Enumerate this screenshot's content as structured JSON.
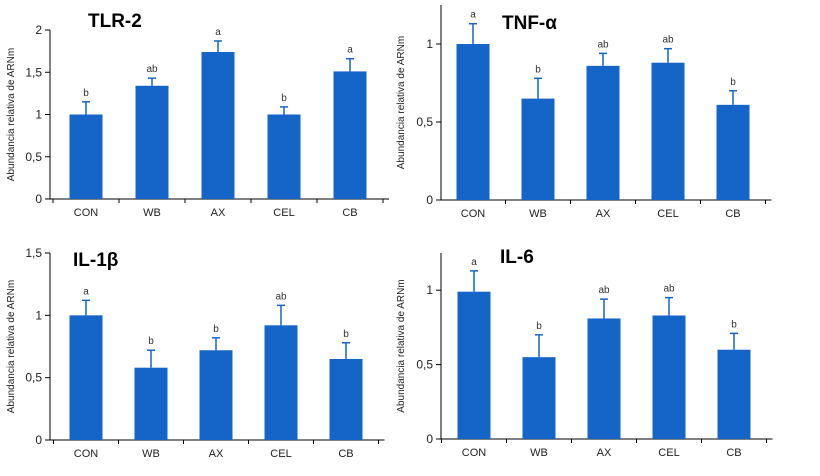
{
  "chart_data": [
    {
      "type": "bar",
      "title": "TLR-2",
      "ylabel": "Abundancia relativa de ARNm",
      "categories": [
        "CON",
        "WB",
        "AX",
        "CEL",
        "CB"
      ],
      "values": [
        1.0,
        1.34,
        1.74,
        1.0,
        1.51
      ],
      "errors": [
        0.15,
        0.09,
        0.13,
        0.09,
        0.15
      ],
      "significance": [
        "b",
        "ab",
        "a",
        "b",
        "a"
      ],
      "ylim": [
        0,
        2
      ],
      "yticks": [
        0,
        0.5,
        1,
        1.5,
        2
      ],
      "ytick_labels": [
        "0",
        "0,5",
        "1",
        "1,5",
        "2"
      ]
    },
    {
      "type": "bar",
      "title": "TNF-α",
      "ylabel": "Abundancia relativa de ARNm",
      "categories": [
        "CON",
        "WB",
        "AX",
        "CEL",
        "CB"
      ],
      "values": [
        1.0,
        0.65,
        0.86,
        0.88,
        0.61
      ],
      "errors": [
        0.13,
        0.13,
        0.08,
        0.09,
        0.09
      ],
      "significance": [
        "a",
        "b",
        "ab",
        "ab",
        "b"
      ],
      "ylim": [
        0,
        1.25
      ],
      "yticks": [
        0,
        0.5,
        1
      ],
      "ytick_labels": [
        "0",
        "0,5",
        "1"
      ]
    },
    {
      "type": "bar",
      "title": "IL-1β",
      "ylabel": "Abundancia relativa de ARNm",
      "categories": [
        "CON",
        "WB",
        "AX",
        "CEL",
        "CB"
      ],
      "values": [
        1.0,
        0.58,
        0.72,
        0.92,
        0.65
      ],
      "errors": [
        0.12,
        0.14,
        0.1,
        0.16,
        0.13
      ],
      "significance": [
        "a",
        "b",
        "b",
        "ab",
        "b"
      ],
      "ylim": [
        0,
        1.5
      ],
      "yticks": [
        0,
        0.5,
        1,
        1.5
      ],
      "ytick_labels": [
        "0",
        "0,5",
        "1",
        "1,5"
      ]
    },
    {
      "type": "bar",
      "title": "IL-6",
      "ylabel": "Abundancia relativa de ARNm",
      "categories": [
        "CON",
        "WB",
        "AX",
        "CEL",
        "CB"
      ],
      "values": [
        0.99,
        0.55,
        0.81,
        0.83,
        0.6
      ],
      "errors": [
        0.14,
        0.15,
        0.13,
        0.12,
        0.11
      ],
      "significance": [
        "a",
        "b",
        "ab",
        "ab",
        "b"
      ],
      "ylim": [
        0,
        1.25
      ],
      "yticks": [
        0,
        0.5,
        1
      ],
      "ytick_labels": [
        "0",
        "0,5",
        "1"
      ]
    }
  ]
}
